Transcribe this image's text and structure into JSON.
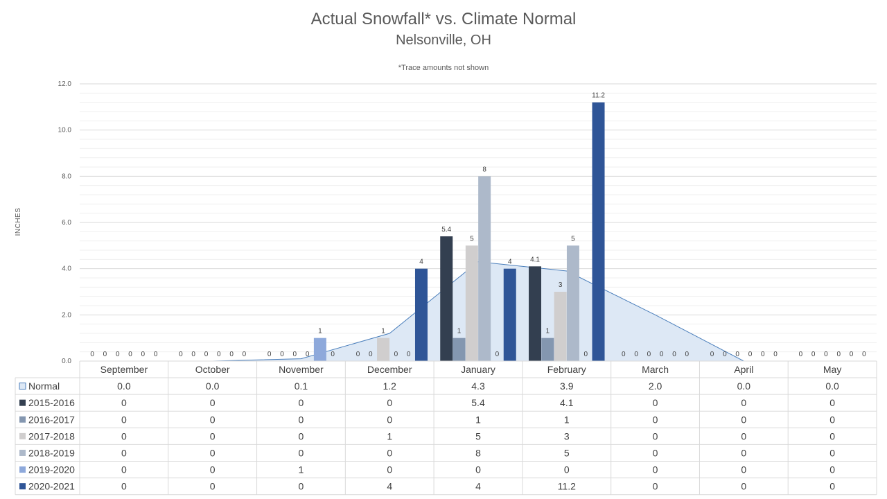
{
  "chart_data": {
    "type": "bar",
    "title": "Actual Snowfall* vs. Climate Normal",
    "subtitle": "Nelsonville, OH",
    "note": "*Trace amounts not shown",
    "ylabel": "INCHES",
    "ylim": [
      0,
      12
    ],
    "yticks": [
      "0.0",
      "2.0",
      "4.0",
      "6.0",
      "8.0",
      "10.0",
      "12.0"
    ],
    "grid": true,
    "legend": "data-table",
    "categories": [
      "September",
      "October",
      "November",
      "December",
      "January",
      "February",
      "March",
      "April",
      "May"
    ],
    "normal": {
      "name": "Normal",
      "type": "area",
      "color": "#DDE8F5",
      "line_color": "#4A7EBB",
      "values": [
        0.0,
        0.0,
        0.1,
        1.2,
        4.3,
        3.9,
        2.0,
        0.0,
        0.0
      ],
      "labels": [
        "0.0",
        "0.0",
        "0.1",
        "1.2",
        "4.3",
        "3.9",
        "2.0",
        "0.0",
        "0.0"
      ]
    },
    "series": [
      {
        "name": "2015-2016",
        "color": "#333F50",
        "values": [
          0,
          0,
          0,
          0,
          5.4,
          4.1,
          0,
          0,
          0
        ]
      },
      {
        "name": "2016-2017",
        "color": "#8497B0",
        "values": [
          0,
          0,
          0,
          0,
          1,
          1,
          0,
          0,
          0
        ]
      },
      {
        "name": "2017-2018",
        "color": "#D0CECE",
        "values": [
          0,
          0,
          0,
          1,
          5,
          3,
          0,
          0,
          0
        ]
      },
      {
        "name": "2018-2019",
        "color": "#ADB9CA",
        "values": [
          0,
          0,
          0,
          0,
          8,
          5,
          0,
          0,
          0
        ]
      },
      {
        "name": "2019-2020",
        "color": "#8EA9DB",
        "values": [
          0,
          0,
          1,
          0,
          0,
          0,
          0,
          0,
          0
        ]
      },
      {
        "name": "2020-2021",
        "color": "#2F5597",
        "values": [
          0,
          0,
          0,
          4,
          4,
          11.2,
          0,
          0,
          0
        ]
      }
    ]
  }
}
